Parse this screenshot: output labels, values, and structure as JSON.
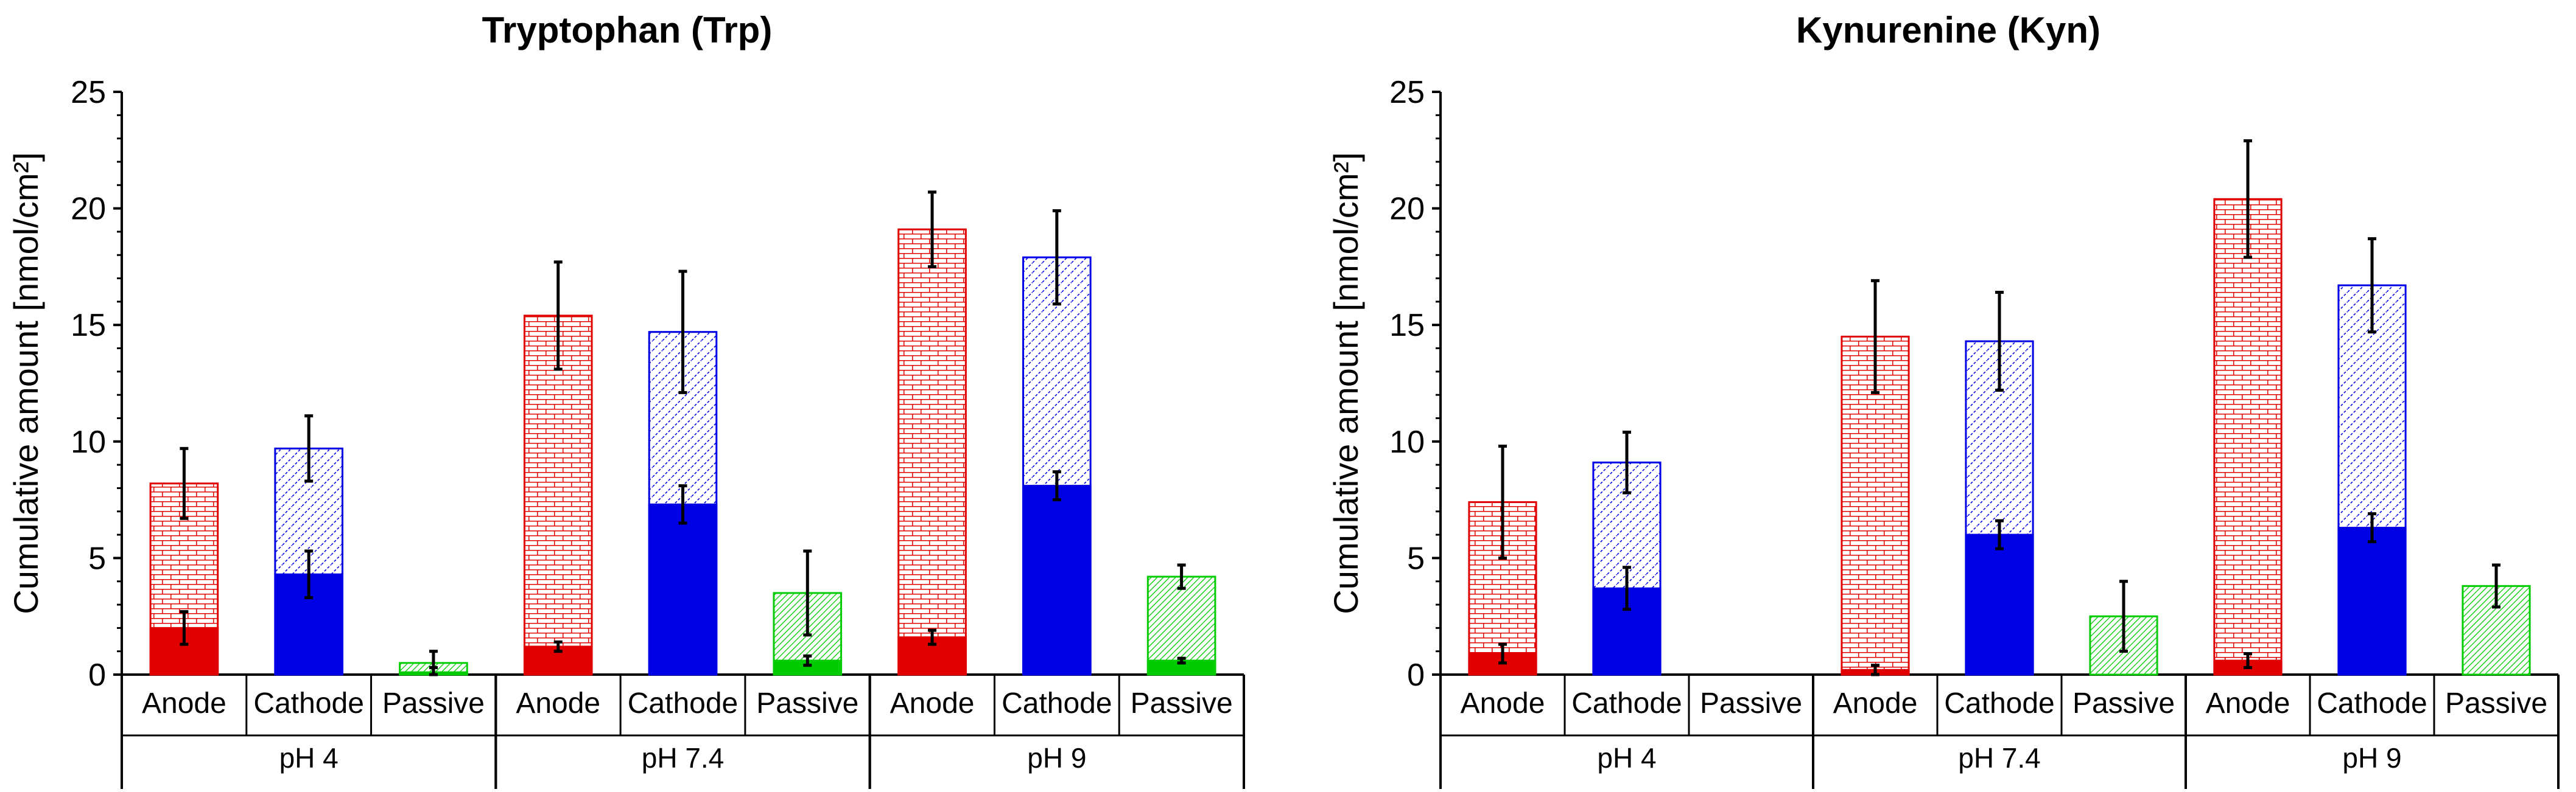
{
  "colors": {
    "anode": "#e00000",
    "cathode": "#0000e6",
    "passive": "#00cc00",
    "axis": "#000000"
  },
  "chart_data": [
    {
      "type": "bar",
      "subtype": "stacked",
      "title": "Tryptophan (Trp)",
      "ylabel": "Cumulative amount [nmol/cm²]",
      "xlabel": "",
      "ylim": [
        0,
        25
      ],
      "yticks": [
        "0",
        "5",
        "10",
        "15",
        "20",
        "25"
      ],
      "groups": [
        {
          "label": "pH 4",
          "bars": [
            {
              "label": "Anode",
              "series": "anode",
              "solid": 2.0,
              "total": 8.2,
              "solid_err": 0.7,
              "total_err": 1.5
            },
            {
              "label": "Cathode",
              "series": "cathode",
              "solid": 4.3,
              "total": 9.7,
              "solid_err": 1.0,
              "total_err": 1.4
            },
            {
              "label": "Passive",
              "series": "passive",
              "solid": 0.1,
              "total": 0.5,
              "solid_err": 0.2,
              "total_err": 0.5
            }
          ]
        },
        {
          "label": "pH 7.4",
          "bars": [
            {
              "label": "Anode",
              "series": "anode",
              "solid": 1.2,
              "total": 15.4,
              "solid_err": 0.2,
              "total_err": 2.3
            },
            {
              "label": "Cathode",
              "series": "cathode",
              "solid": 7.3,
              "total": 14.7,
              "solid_err": 0.8,
              "total_err": 2.6
            },
            {
              "label": "Passive",
              "series": "passive",
              "solid": 0.6,
              "total": 3.5,
              "solid_err": 0.2,
              "total_err": 1.8
            }
          ]
        },
        {
          "label": "pH 9",
          "bars": [
            {
              "label": "Anode",
              "series": "anode",
              "solid": 1.6,
              "total": 19.1,
              "solid_err": 0.3,
              "total_err": 1.6
            },
            {
              "label": "Cathode",
              "series": "cathode",
              "solid": 8.1,
              "total": 17.9,
              "solid_err": 0.6,
              "total_err": 2.0
            },
            {
              "label": "Passive",
              "series": "passive",
              "solid": 0.6,
              "total": 4.2,
              "solid_err": 0.1,
              "total_err": 0.5
            }
          ]
        }
      ]
    },
    {
      "type": "bar",
      "subtype": "stacked",
      "title": "Kynurenine (Kyn)",
      "ylabel": "Cumulative amount [nmol/cm²]",
      "xlabel": "",
      "ylim": [
        0,
        25
      ],
      "yticks": [
        "0",
        "5",
        "10",
        "15",
        "20",
        "25"
      ],
      "groups": [
        {
          "label": "pH 4",
          "bars": [
            {
              "label": "Anode",
              "series": "anode",
              "solid": 0.9,
              "total": 7.4,
              "solid_err": 0.4,
              "total_err": 2.4
            },
            {
              "label": "Cathode",
              "series": "cathode",
              "solid": 3.7,
              "total": 9.1,
              "solid_err": 0.9,
              "total_err": 1.3
            },
            {
              "label": "Passive",
              "series": "passive",
              "solid": 0,
              "total": 0,
              "solid_err": 0,
              "total_err": 0
            }
          ]
        },
        {
          "label": "pH 7.4",
          "bars": [
            {
              "label": "Anode",
              "series": "anode",
              "solid": 0.2,
              "total": 14.5,
              "solid_err": 0.2,
              "total_err": 2.4
            },
            {
              "label": "Cathode",
              "series": "cathode",
              "solid": 6.0,
              "total": 14.3,
              "solid_err": 0.6,
              "total_err": 2.1
            },
            {
              "label": "Passive",
              "series": "passive",
              "solid": 0,
              "total": 2.5,
              "solid_err": 0,
              "total_err": 1.5
            }
          ]
        },
        {
          "label": "pH 9",
          "bars": [
            {
              "label": "Anode",
              "series": "anode",
              "solid": 0.6,
              "total": 20.4,
              "solid_err": 0.3,
              "total_err": 2.5
            },
            {
              "label": "Cathode",
              "series": "cathode",
              "solid": 6.3,
              "total": 16.7,
              "solid_err": 0.6,
              "total_err": 2.0
            },
            {
              "label": "Passive",
              "series": "passive",
              "solid": 0,
              "total": 3.8,
              "solid_err": 0,
              "total_err": 0.9
            }
          ]
        }
      ]
    }
  ]
}
